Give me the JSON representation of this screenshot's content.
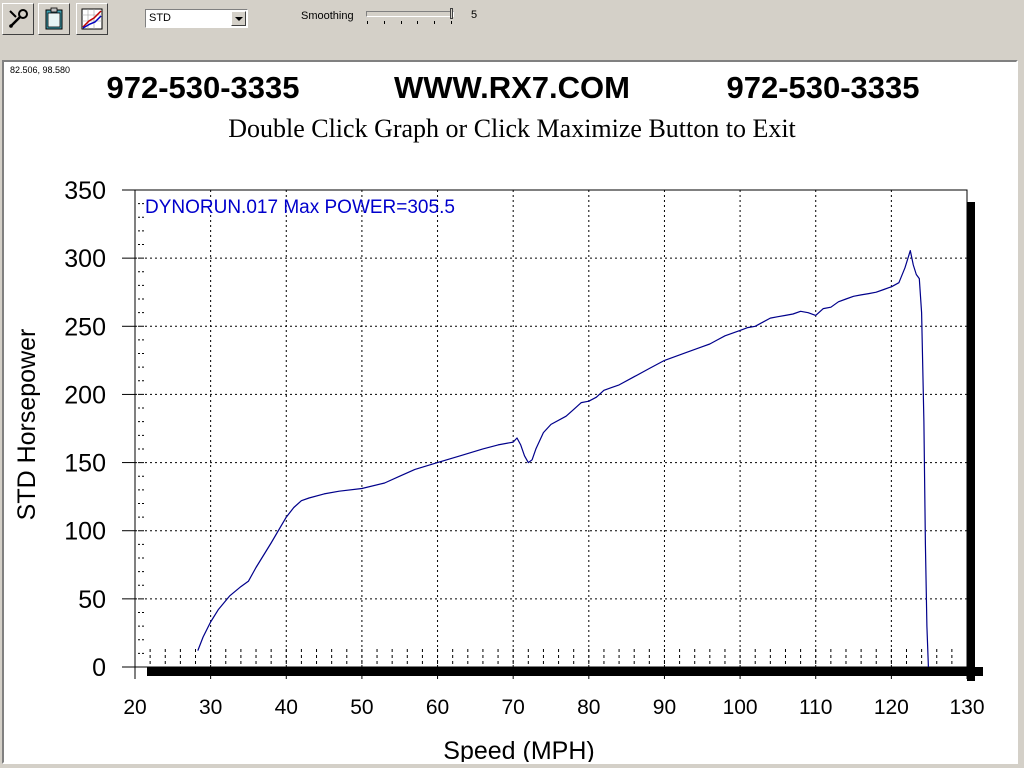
{
  "toolbar": {
    "buttons": [
      {
        "icon": "wrench-icon"
      },
      {
        "icon": "clipboard-icon"
      },
      {
        "icon": "graph-icon"
      }
    ],
    "mode_select": {
      "value": "STD"
    },
    "smoothing": {
      "label": "Smoothing",
      "value": "5",
      "level": 5,
      "max": 5
    }
  },
  "plot": {
    "cursor_readout": "82.506, 98.580",
    "header_left": "972-530-3335",
    "header_center": "WWW.RX7.COM",
    "header_right": "972-530-3335",
    "instruction": "Double Click Graph or Click Maximize Button to Exit"
  },
  "chart_data": {
    "type": "line",
    "annotation": "DYNORUN.017  Max POWER=305.5",
    "xlabel": "Speed (MPH)",
    "ylabel": "STD Horsepower",
    "xlim": [
      20,
      130
    ],
    "ylim": [
      0,
      350
    ],
    "xticks": [
      20,
      30,
      40,
      50,
      60,
      70,
      80,
      90,
      100,
      110,
      120,
      130
    ],
    "yticks": [
      0,
      50,
      100,
      150,
      200,
      250,
      300,
      350
    ],
    "grid": true,
    "line_color": "#00008b",
    "annotation_color": "#0000cc",
    "series": [
      {
        "x": [
          28.3,
          29.0,
          30.0,
          31.0,
          32.5,
          34.0,
          35.0,
          36.0,
          38.0,
          40.0,
          41.0,
          42.0,
          43.0,
          45.0,
          47.0,
          50.0,
          53.0,
          55.0,
          57.0,
          60.0,
          63.0,
          66.0,
          68.0,
          70.0,
          70.5,
          71.0,
          71.5,
          72.0,
          72.5,
          73.0,
          74.0,
          75.0,
          77.0,
          78.0,
          79.0,
          80.0,
          81.0,
          82.0,
          83.0,
          84.0,
          86.0,
          88.0,
          90.0,
          93.0,
          95.0,
          96.0,
          97.0,
          98.0,
          100.0,
          101.0,
          102.0,
          103.0,
          104.0,
          105.0,
          106.0,
          107.0,
          108.0,
          109.0,
          110.0,
          111.0,
          112.0,
          113.0,
          114.0,
          115.0,
          116.0,
          117.0,
          118.0,
          119.0,
          120.0,
          121.0,
          121.8,
          122.5,
          122.9,
          123.3,
          123.7,
          124.0,
          124.3,
          124.5,
          124.7,
          124.9
        ],
        "values": [
          12,
          22,
          33,
          42,
          52,
          59,
          63,
          73,
          91,
          110,
          117,
          122,
          124,
          127,
          129,
          131,
          135,
          140,
          145,
          150,
          155,
          160,
          163,
          165,
          168,
          163,
          155,
          150,
          152,
          160,
          172,
          178,
          184,
          189,
          194,
          195,
          198,
          203,
          205,
          207,
          213,
          219,
          225,
          231,
          235,
          237,
          240,
          243,
          247,
          249,
          250,
          253,
          256,
          257,
          258,
          259,
          261,
          260,
          258,
          263,
          264,
          268,
          270,
          272,
          273,
          274,
          275,
          277,
          279,
          282,
          293,
          305.5,
          295,
          288,
          285,
          260,
          180,
          90,
          30,
          0
        ]
      }
    ]
  }
}
